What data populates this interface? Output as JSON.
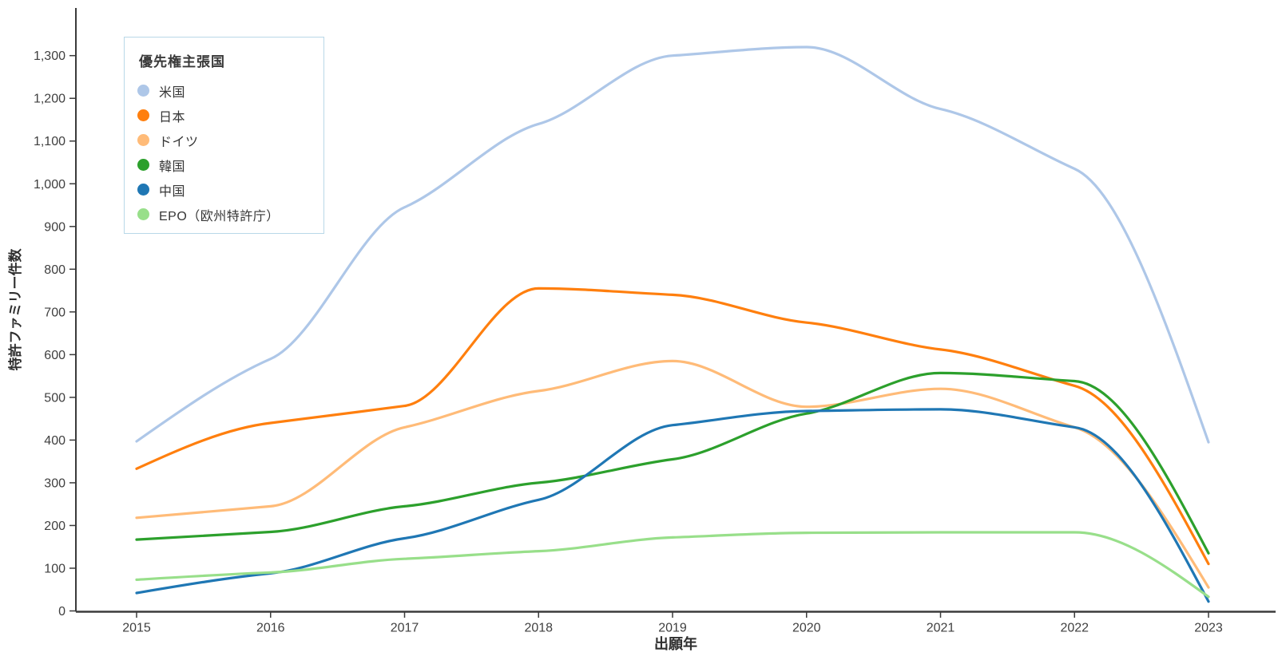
{
  "chart_data": {
    "type": "line",
    "interpolation": "monotone",
    "title": "",
    "xlabel": "出願年",
    "ylabel": "特許ファミリー件数",
    "legend_title": "優先権主張国",
    "legend_position": "top-left-inside",
    "grid": false,
    "x": [
      2015,
      2016,
      2017,
      2018,
      2019,
      2020,
      2021,
      2022,
      2023
    ],
    "x_tick_labels": [
      "2015",
      "2016",
      "2017",
      "2018",
      "2019",
      "2020",
      "2021",
      "2022",
      "2023"
    ],
    "y_ticks": [
      0,
      100,
      200,
      300,
      400,
      500,
      600,
      700,
      800,
      900,
      1000,
      1100,
      1200,
      1300
    ],
    "y_tick_labels": [
      "0",
      "100",
      "200",
      "300",
      "400",
      "500",
      "600",
      "700",
      "800",
      "900",
      "1,000",
      "1,100",
      "1,200",
      "1,300"
    ],
    "ylim": [
      0,
      1400
    ],
    "series": [
      {
        "id": "us",
        "name": "米国",
        "color": "#aec7e8",
        "values": [
          397,
          590,
          945,
          1140,
          1300,
          1320,
          1175,
          1035,
          395
        ]
      },
      {
        "id": "japan",
        "name": "日本",
        "color": "#ff7f0e",
        "values": [
          333,
          440,
          480,
          755,
          740,
          675,
          612,
          527,
          110
        ]
      },
      {
        "id": "germany",
        "name": "ドイツ",
        "color": "#ffbb78",
        "values": [
          218,
          245,
          430,
          515,
          585,
          478,
          520,
          430,
          55
        ]
      },
      {
        "id": "korea",
        "name": "韓国",
        "color": "#2ca02c",
        "values": [
          167,
          185,
          245,
          300,
          355,
          462,
          557,
          538,
          135
        ]
      },
      {
        "id": "china",
        "name": "中国",
        "color": "#1f77b4",
        "values": [
          42,
          88,
          170,
          260,
          435,
          468,
          472,
          430,
          22
        ]
      },
      {
        "id": "epo",
        "name": "EPO（欧州特許庁）",
        "color": "#98df8a",
        "values": [
          73,
          90,
          122,
          140,
          172,
          183,
          184,
          184,
          33
        ]
      }
    ]
  },
  "style": {
    "axis_line_color": "#3b3b3b",
    "tick_label_color": "#3f3f3f",
    "axis_title_color": "#2f2f2f",
    "legend_border_color": "#b9d8e8",
    "background": "#ffffff"
  }
}
